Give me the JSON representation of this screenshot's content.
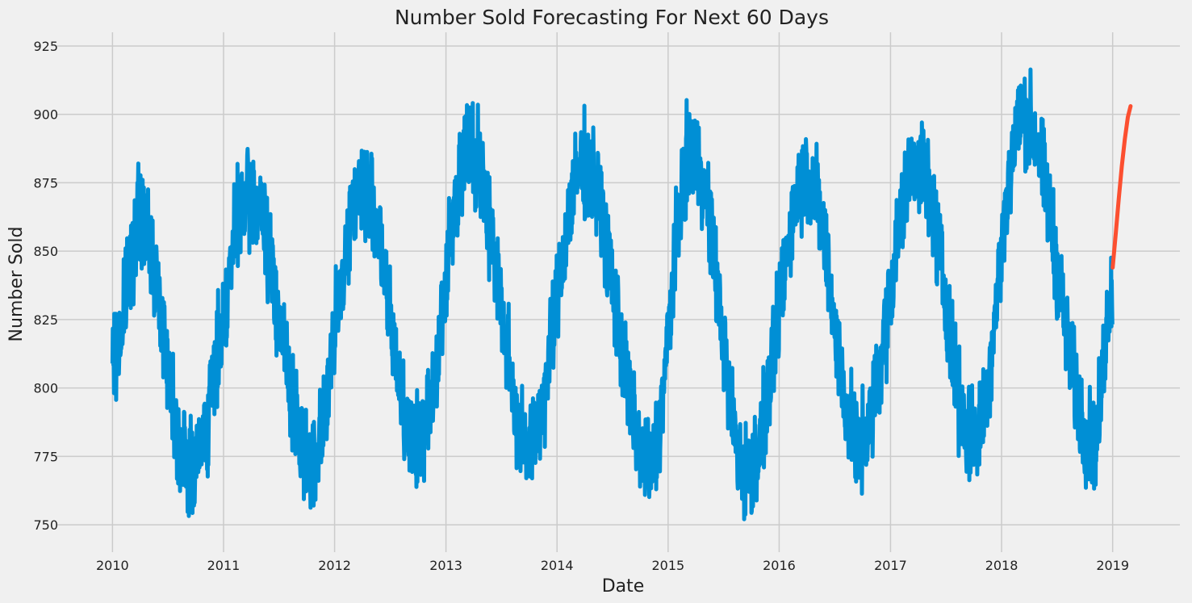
{
  "chart_data": {
    "type": "line",
    "title": "Number Sold Forecasting For Next 60 Days",
    "xlabel": "Date",
    "ylabel": "Number Sold",
    "x_range": [
      "2009-07-01",
      "2019-08-10"
    ],
    "ylim": [
      740,
      930
    ],
    "x_tick_labels": [
      "2010",
      "2011",
      "2012",
      "2013",
      "2014",
      "2015",
      "2016",
      "2017",
      "2018",
      "2019"
    ],
    "y_ticks": [
      750,
      775,
      800,
      825,
      850,
      875,
      900,
      925
    ],
    "grid": true,
    "legend": "none",
    "series": [
      {
        "role": "observed",
        "color": "#008fd5",
        "start": "2010-01-01",
        "end": "2018-12-31",
        "frequency": "daily",
        "seasonal_peak_values": [
          {
            "date": "2010-04-01",
            "value": 883
          },
          {
            "date": "2011-04-01",
            "value": 892
          },
          {
            "date": "2012-04-01",
            "value": 896
          },
          {
            "date": "2013-03-20",
            "value": 910
          },
          {
            "date": "2014-04-01",
            "value": 903
          },
          {
            "date": "2015-03-20",
            "value": 909
          },
          {
            "date": "2016-04-01",
            "value": 900
          },
          {
            "date": "2017-04-01",
            "value": 904
          },
          {
            "date": "2018-03-15",
            "value": 921
          }
        ],
        "seasonal_trough_values": [
          {
            "date": "2010-09-15",
            "value": 749
          },
          {
            "date": "2011-10-15",
            "value": 752
          },
          {
            "date": "2012-10-01",
            "value": 756
          },
          {
            "date": "2013-10-01",
            "value": 758
          },
          {
            "date": "2014-11-01",
            "value": 750
          },
          {
            "date": "2015-09-20",
            "value": 747
          },
          {
            "date": "2016-09-20",
            "value": 757
          },
          {
            "date": "2017-10-01",
            "value": 759
          },
          {
            "date": "2018-11-01",
            "value": 758
          }
        ]
      },
      {
        "role": "forecast",
        "color": "#fc4f30",
        "start": "2019-01-01",
        "end": "2019-03-01",
        "x": [
          "2019-01-01",
          "2019-01-11",
          "2019-01-21",
          "2019-01-31",
          "2019-02-10",
          "2019-02-20",
          "2019-03-01"
        ],
        "values": [
          844,
          856,
          869,
          881,
          891,
          899,
          903
        ]
      }
    ]
  }
}
